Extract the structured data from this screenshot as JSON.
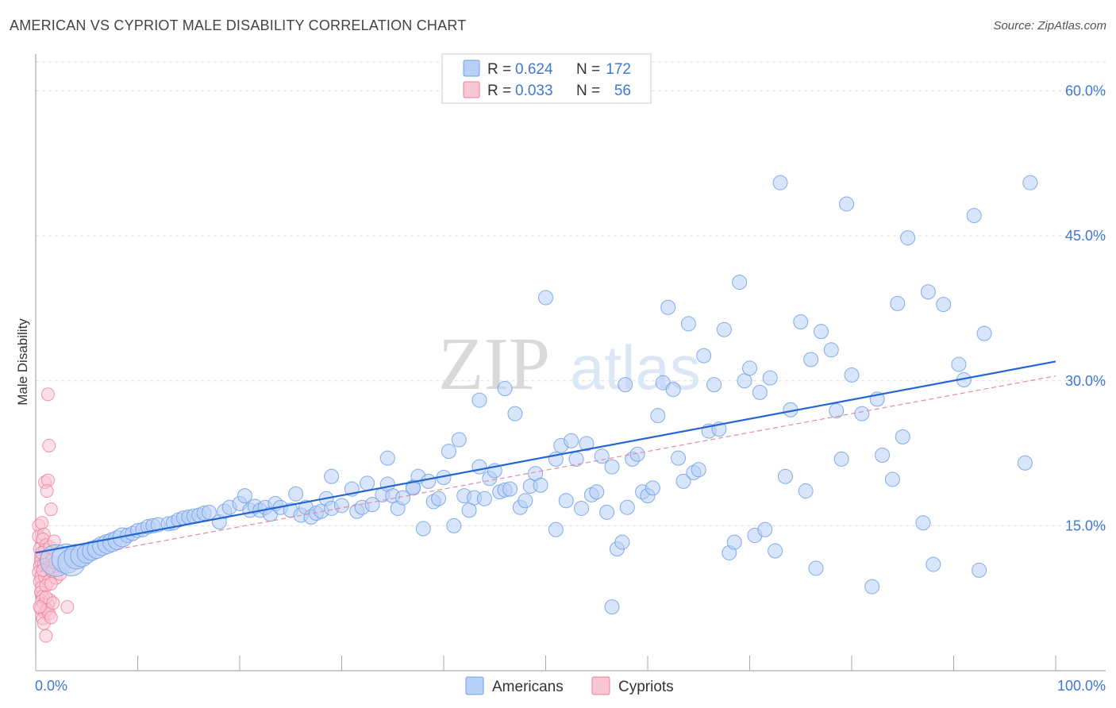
{
  "header": {
    "title": "AMERICAN VS CYPRIOT MALE DISABILITY CORRELATION CHART",
    "source": "Source: ZipAtlas.com"
  },
  "watermark": {
    "zip": "ZIP",
    "atlas": "atlas"
  },
  "colors": {
    "americans": "#6f9fe6",
    "americans_fill": "#b8d0f5",
    "americans_line": "#2366d1",
    "cypriots": "#ef7c9b",
    "cypriots_fill": "#f9c6d4",
    "cypriots_line": "#e28aa3",
    "axis_text": "#3f78d1",
    "grid": "#dddddd"
  },
  "legend": {
    "americans": {
      "r_label": "R = ",
      "r_value": "0.624",
      "n_label": "N = ",
      "n_value": "172"
    },
    "cypriots": {
      "r_label": "R = ",
      "r_value": "0.033",
      "n_label": "N = ",
      "n_value": "56"
    }
  },
  "chart_data": {
    "type": "scatter",
    "title": "AMERICAN VS CYPRIOT MALE DISABILITY CORRELATION CHART",
    "ylabel": "Male Disability",
    "xlabel": "",
    "xlim": [
      0,
      100
    ],
    "ylim": [
      0,
      63
    ],
    "x_tick_labels": [
      "0.0%",
      "100.0%"
    ],
    "y_ticks": [
      15,
      30,
      45,
      60
    ],
    "y_tick_labels": [
      "15.0%",
      "30.0%",
      "45.0%",
      "60.0%"
    ],
    "legend_bottom": [
      "Americans",
      "Cypriots"
    ],
    "series": [
      {
        "name": "Americans",
        "r": 0.624,
        "n": 172,
        "trend": {
          "x": [
            0,
            100
          ],
          "y": [
            12.2,
            32.0
          ]
        },
        "points": [
          [
            2,
            11.4
          ],
          [
            3,
            11.6
          ],
          [
            3.5,
            11.2
          ],
          [
            4,
            11.8
          ],
          [
            4.5,
            11.9
          ],
          [
            5,
            12.1
          ],
          [
            5.5,
            12.4
          ],
          [
            6,
            12.6
          ],
          [
            6.5,
            12.9
          ],
          [
            7,
            13.1
          ],
          [
            7.5,
            13.3
          ],
          [
            8,
            13.5
          ],
          [
            8.5,
            13.8
          ],
          [
            9,
            14.0
          ],
          [
            9.5,
            14.2
          ],
          [
            10,
            14.5
          ],
          [
            10.5,
            14.6
          ],
          [
            11,
            14.9
          ],
          [
            11.5,
            15.0
          ],
          [
            12,
            15.1
          ],
          [
            13,
            15.2
          ],
          [
            13.5,
            15.3
          ],
          [
            14,
            15.6
          ],
          [
            14.5,
            15.8
          ],
          [
            15,
            15.9
          ],
          [
            15.5,
            16.0
          ],
          [
            16,
            16.1
          ],
          [
            16.5,
            16.3
          ],
          [
            17,
            16.4
          ],
          [
            18,
            15.4
          ],
          [
            18.5,
            16.5
          ],
          [
            19,
            16.9
          ],
          [
            20,
            17.3
          ],
          [
            20.5,
            18.1
          ],
          [
            21,
            16.6
          ],
          [
            21.5,
            17.0
          ],
          [
            22,
            16.6
          ],
          [
            22.5,
            16.9
          ],
          [
            23,
            16.2
          ],
          [
            23.5,
            17.3
          ],
          [
            24,
            16.9
          ],
          [
            25,
            16.6
          ],
          [
            25.5,
            18.3
          ],
          [
            26,
            16.1
          ],
          [
            26.5,
            16.9
          ],
          [
            27,
            15.9
          ],
          [
            27.5,
            16.3
          ],
          [
            28,
            16.5
          ],
          [
            28.5,
            17.8
          ],
          [
            29,
            16.8
          ],
          [
            30,
            17.1
          ],
          [
            31,
            18.8
          ],
          [
            31.5,
            16.5
          ],
          [
            32,
            16.9
          ],
          [
            32.5,
            19.4
          ],
          [
            33,
            17.2
          ],
          [
            34,
            18.2
          ],
          [
            34.5,
            19.3
          ],
          [
            35,
            18.1
          ],
          [
            35.5,
            16.8
          ],
          [
            36,
            17.9
          ],
          [
            37,
            19.0
          ],
          [
            37.5,
            20.1
          ],
          [
            38,
            14.7
          ],
          [
            38.5,
            19.6
          ],
          [
            39,
            17.5
          ],
          [
            39.5,
            17.8
          ],
          [
            40,
            20.0
          ],
          [
            40.5,
            22.7
          ],
          [
            41,
            15.0
          ],
          [
            41.5,
            23.9
          ],
          [
            42,
            18.1
          ],
          [
            42.5,
            16.6
          ],
          [
            43,
            17.9
          ],
          [
            43.5,
            21.1
          ],
          [
            44,
            17.8
          ],
          [
            44.5,
            19.9
          ],
          [
            45,
            20.7
          ],
          [
            45.5,
            18.5
          ],
          [
            46,
            18.7
          ],
          [
            46.5,
            18.8
          ],
          [
            47,
            26.6
          ],
          [
            47.5,
            16.9
          ],
          [
            48,
            17.6
          ],
          [
            48.5,
            19.1
          ],
          [
            49,
            20.4
          ],
          [
            49.5,
            19.2
          ],
          [
            50,
            38.6
          ],
          [
            51,
            21.9
          ],
          [
            51.5,
            23.3
          ],
          [
            52,
            17.6
          ],
          [
            52.5,
            23.8
          ],
          [
            53,
            21.9
          ],
          [
            53.5,
            16.8
          ],
          [
            54,
            23.5
          ],
          [
            54.5,
            18.2
          ],
          [
            55,
            18.5
          ],
          [
            55.5,
            22.2
          ],
          [
            56,
            16.4
          ],
          [
            56.5,
            6.6
          ],
          [
            57,
            12.6
          ],
          [
            57.5,
            13.3
          ],
          [
            57.8,
            29.6
          ],
          [
            58,
            16.9
          ],
          [
            58.5,
            21.9
          ],
          [
            59,
            22.4
          ],
          [
            59.5,
            18.5
          ],
          [
            60,
            18.1
          ],
          [
            60.5,
            18.9
          ],
          [
            61,
            26.4
          ],
          [
            61.5,
            29.8
          ],
          [
            62,
            37.6
          ],
          [
            62.5,
            29.1
          ],
          [
            63,
            22.0
          ],
          [
            63.5,
            19.6
          ],
          [
            64,
            35.9
          ],
          [
            64.5,
            20.5
          ],
          [
            65,
            20.8
          ],
          [
            65.5,
            32.6
          ],
          [
            66,
            24.8
          ],
          [
            66.5,
            29.6
          ],
          [
            67,
            25.0
          ],
          [
            67.5,
            35.3
          ],
          [
            68,
            12.2
          ],
          [
            68.5,
            13.3
          ],
          [
            69,
            40.2
          ],
          [
            69.5,
            30.0
          ],
          [
            70,
            31.3
          ],
          [
            70.5,
            14.0
          ],
          [
            71,
            28.8
          ],
          [
            71.5,
            14.6
          ],
          [
            72,
            30.3
          ],
          [
            72.5,
            12.4
          ],
          [
            73,
            50.5
          ],
          [
            73.5,
            20.1
          ],
          [
            74,
            27.0
          ],
          [
            75,
            36.1
          ],
          [
            75.5,
            18.6
          ],
          [
            76,
            32.2
          ],
          [
            76.5,
            10.6
          ],
          [
            77,
            35.1
          ],
          [
            78,
            33.2
          ],
          [
            78.5,
            26.9
          ],
          [
            79,
            21.9
          ],
          [
            79.5,
            48.3
          ],
          [
            80,
            30.6
          ],
          [
            81,
            26.6
          ],
          [
            82,
            8.7
          ],
          [
            82.5,
            28.1
          ],
          [
            83,
            22.3
          ],
          [
            84,
            19.8
          ],
          [
            84.5,
            38.0
          ],
          [
            85,
            24.2
          ],
          [
            85.5,
            44.8
          ],
          [
            87,
            15.3
          ],
          [
            87.5,
            39.2
          ],
          [
            88,
            11.0
          ],
          [
            89,
            37.9
          ],
          [
            90.5,
            31.7
          ],
          [
            91,
            30.1
          ],
          [
            92,
            47.1
          ],
          [
            92.5,
            10.4
          ],
          [
            93,
            34.9
          ],
          [
            97,
            21.5
          ],
          [
            97.5,
            50.5
          ],
          [
            56.5,
            21.1
          ],
          [
            46,
            29.2
          ],
          [
            37,
            18.9
          ],
          [
            29,
            20.1
          ],
          [
            34.5,
            22.0
          ],
          [
            43.5,
            28.0
          ],
          [
            51,
            14.6
          ]
        ]
      },
      {
        "name": "Cypriots",
        "r": 0.033,
        "n": 56,
        "trend": {
          "x": [
            0,
            100
          ],
          "y": [
            11.0,
            30.5
          ]
        },
        "points": [
          [
            0.3,
            15.0
          ],
          [
            0.3,
            13.9
          ],
          [
            0.4,
            12.6
          ],
          [
            0.5,
            11.8
          ],
          [
            0.5,
            11.3
          ],
          [
            0.4,
            10.8
          ],
          [
            0.3,
            10.2
          ],
          [
            0.5,
            9.7
          ],
          [
            0.4,
            9.2
          ],
          [
            0.6,
            8.6
          ],
          [
            0.5,
            8.1
          ],
          [
            0.7,
            7.7
          ],
          [
            0.6,
            7.2
          ],
          [
            0.8,
            6.9
          ],
          [
            0.5,
            6.4
          ],
          [
            0.9,
            6.0
          ],
          [
            0.7,
            5.4
          ],
          [
            0.8,
            4.9
          ],
          [
            1.0,
            3.6
          ],
          [
            0.9,
            19.5
          ],
          [
            1.2,
            19.7
          ],
          [
            1.1,
            18.6
          ],
          [
            1.3,
            23.3
          ],
          [
            1.2,
            28.6
          ],
          [
            1.5,
            16.7
          ],
          [
            0.6,
            15.3
          ],
          [
            0.8,
            14.1
          ],
          [
            0.7,
            13.6
          ],
          [
            1.0,
            13.0
          ],
          [
            0.9,
            12.5
          ],
          [
            1.1,
            11.9
          ],
          [
            1.0,
            11.5
          ],
          [
            0.8,
            11.0
          ],
          [
            1.2,
            10.6
          ],
          [
            1.1,
            10.1
          ],
          [
            0.9,
            9.7
          ],
          [
            1.3,
            9.3
          ],
          [
            1.0,
            8.8
          ],
          [
            1.4,
            7.3
          ],
          [
            1.2,
            6.8
          ],
          [
            1.1,
            6.3
          ],
          [
            1.3,
            5.9
          ],
          [
            1.5,
            5.5
          ],
          [
            1.0,
            7.6
          ],
          [
            0.6,
            12.2
          ],
          [
            0.7,
            10.4
          ],
          [
            1.4,
            12.8
          ],
          [
            1.6,
            10.3
          ],
          [
            2.0,
            9.6
          ],
          [
            2.4,
            10.0
          ],
          [
            3.1,
            6.6
          ],
          [
            1.8,
            13.4
          ],
          [
            1.9,
            11.2
          ],
          [
            1.5,
            9.0
          ],
          [
            1.7,
            7.0
          ],
          [
            0.4,
            6.6
          ]
        ]
      }
    ]
  }
}
